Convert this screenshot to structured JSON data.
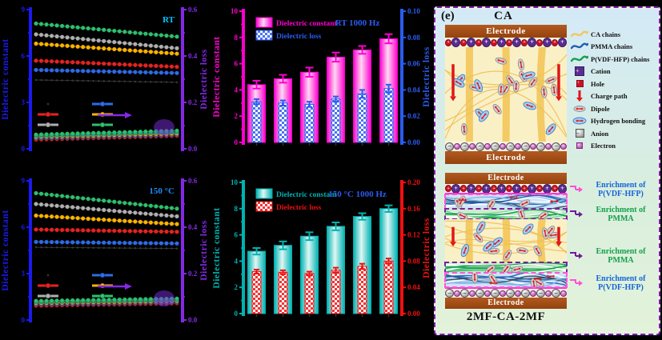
{
  "chart_data": [
    {
      "id": "line-rt",
      "type": "line",
      "title": "RT",
      "title_color": "#00c3ff",
      "left_axis": {
        "label": "Dielectric constant",
        "color": "#1a1af0",
        "range": [
          0,
          9
        ],
        "ticks": [
          0,
          3,
          6,
          9
        ]
      },
      "right_axis": {
        "label": "Dielectric loss",
        "color": "#8428e8",
        "range": [
          0,
          0.6
        ],
        "ticks": [
          "0.0",
          "0.2",
          "0.4",
          "0.6"
        ]
      },
      "x_axis": {
        "tick_labels_visible": false
      },
      "series": [
        {
          "name": "constant-black",
          "color": "#3c3c3c",
          "axis": "left",
          "small": true,
          "start": 4.45,
          "end": 4.3
        },
        {
          "name": "constant-red",
          "color": "#e82222",
          "axis": "left",
          "start": 5.7,
          "end": 5.3
        },
        {
          "name": "constant-gray",
          "color": "#b0b0b0",
          "axis": "left",
          "start": 7.4,
          "end": 6.5
        },
        {
          "name": "constant-blue",
          "color": "#2e6be8",
          "axis": "left",
          "start": 5.1,
          "end": 4.9
        },
        {
          "name": "constant-yellow",
          "color": "#ffb400",
          "axis": "left",
          "start": 6.8,
          "end": 6.15
        },
        {
          "name": "constant-green",
          "color": "#2ec06e",
          "axis": "left",
          "start": 8.1,
          "end": 7.25
        },
        {
          "name": "loss-red",
          "color": "#e82222",
          "axis": "right",
          "start": 0.04,
          "end": 0.056
        },
        {
          "name": "loss-blue",
          "color": "#2e6be8",
          "axis": "right",
          "start": 0.046,
          "end": 0.061
        },
        {
          "name": "loss-yellow",
          "color": "#ffb400",
          "axis": "right",
          "start": 0.051,
          "end": 0.066
        },
        {
          "name": "loss-cyan",
          "color": "#19c2c2",
          "axis": "right",
          "start": 0.056,
          "end": 0.072
        },
        {
          "name": "loss-green",
          "color": "#2ec06e",
          "axis": "right",
          "start": 0.061,
          "end": 0.078
        }
      ],
      "annotation": {
        "ellipse_color": "#7a2ee0",
        "arrow_color": "#8428e8"
      }
    },
    {
      "id": "line-150",
      "type": "line",
      "title": "150 °C",
      "title_color": "#1e90ff",
      "left_axis": {
        "label": "Dielectric constant",
        "color": "#1a1af0",
        "range": [
          0,
          9
        ],
        "ticks": [
          0,
          3,
          6,
          9
        ]
      },
      "right_axis": {
        "label": "Dielectric loss",
        "color": "#8428e8",
        "range": [
          0,
          0.6
        ],
        "ticks": [
          "0.0",
          "0.2",
          "0.4",
          "0.6"
        ]
      },
      "x_axis": {
        "tick_labels_visible": false
      },
      "series": [
        {
          "name": "constant-black",
          "color": "#3c3c3c",
          "axis": "left",
          "small": true,
          "start": 4.7,
          "end": 4.62
        },
        {
          "name": "constant-red",
          "color": "#e82222",
          "axis": "left",
          "start": 5.85,
          "end": 5.7
        },
        {
          "name": "constant-gray",
          "color": "#b0b0b0",
          "axis": "left",
          "start": 7.5,
          "end": 6.7
        },
        {
          "name": "constant-blue",
          "color": "#2e6be8",
          "axis": "left",
          "start": 5.05,
          "end": 4.95
        },
        {
          "name": "constant-yellow",
          "color": "#ffb400",
          "axis": "left",
          "start": 6.75,
          "end": 6.2
        },
        {
          "name": "constant-green",
          "color": "#2ec06e",
          "axis": "left",
          "start": 8.2,
          "end": 7.2
        },
        {
          "name": "loss-red",
          "color": "#e82222",
          "axis": "right",
          "start": 0.062,
          "end": 0.072
        },
        {
          "name": "loss-blue",
          "color": "#2e6be8",
          "axis": "right",
          "start": 0.068,
          "end": 0.077
        },
        {
          "name": "loss-yellow",
          "color": "#ffb400",
          "axis": "right",
          "start": 0.073,
          "end": 0.082
        },
        {
          "name": "loss-cyan",
          "color": "#19c2c2",
          "axis": "right",
          "start": 0.078,
          "end": 0.087
        },
        {
          "name": "loss-green",
          "color": "#2ec06e",
          "axis": "right",
          "start": 0.082,
          "end": 0.092
        }
      ],
      "annotation": {
        "ellipse_color": "#7a2ee0",
        "arrow_color": "#8428e8"
      }
    },
    {
      "id": "bar-rt",
      "type": "bar",
      "title": "RT 1000 Hz",
      "title_color": "#2b5bf0",
      "left_axis": {
        "label": "Dielectric constant",
        "color": "#ff00d0",
        "range": [
          0,
          10
        ],
        "ticks": [
          0,
          2,
          4,
          6,
          8,
          10
        ]
      },
      "right_axis": {
        "label": "Dielectric loss",
        "color": "#2b5bf0",
        "range": [
          0,
          0.1
        ],
        "ticks": [
          "0.00",
          "0.02",
          "0.04",
          "0.06",
          "0.08",
          "0.10"
        ]
      },
      "x_axis": {
        "tick_labels_visible": false,
        "groups": 6
      },
      "legend": [
        {
          "label": "Dielectric constant"
        },
        {
          "label": "Dielectric loss"
        }
      ],
      "constant": {
        "color": "#ff00d0",
        "light": "#ffd9f2",
        "values": [
          4.4,
          4.85,
          5.35,
          6.5,
          7.05,
          7.9
        ],
        "errors": [
          0.3,
          0.3,
          0.35,
          0.35,
          0.3,
          0.35
        ]
      },
      "loss": {
        "color": "#2b5bf0",
        "light": "#ffffff",
        "values": [
          0.031,
          0.03,
          0.029,
          0.033,
          0.037,
          0.041
        ],
        "errors": [
          0.002,
          0.002,
          0.002,
          0.002,
          0.003,
          0.003
        ]
      }
    },
    {
      "id": "bar-150",
      "type": "bar",
      "title": "150 °C 1000 Hz",
      "title_color": "#2b5bf0",
      "left_axis": {
        "label": "Dielectric constant",
        "color": "#00b2b2",
        "range": [
          0,
          10
        ],
        "ticks": [
          0,
          2,
          4,
          6,
          8,
          10
        ]
      },
      "right_axis": {
        "label": "Dielectric loss",
        "color": "#ee1111",
        "range": [
          0,
          0.2
        ],
        "ticks": [
          "0.00",
          "0.04",
          "0.08",
          "0.12",
          "0.16",
          "0.20"
        ]
      },
      "x_axis": {
        "tick_labels_visible": false,
        "groups": 6
      },
      "legend": [
        {
          "label": "Dielectric constant"
        },
        {
          "label": "Dielectric loss"
        }
      ],
      "constant": {
        "color": "#00b2b2",
        "light": "#dff7f4",
        "values": [
          4.75,
          5.2,
          5.9,
          6.65,
          7.4,
          8.0
        ],
        "errors": [
          0.25,
          0.3,
          0.3,
          0.3,
          0.25,
          0.25
        ]
      },
      "loss": {
        "color": "#ee1111",
        "light": "#ffffff",
        "values": [
          0.064,
          0.063,
          0.061,
          0.066,
          0.072,
          0.08
        ],
        "errors": [
          0.003,
          0.003,
          0.003,
          0.004,
          0.004,
          0.004
        ]
      }
    }
  ],
  "panel_e": {
    "label": "(e)",
    "top_title": "CA",
    "bottom_title": "2MF-CA-2MF",
    "electrode_label": "Electrode",
    "legend_items": [
      {
        "icon": "ca-chain-icon",
        "label": "CA chains",
        "color": "#f2c75e"
      },
      {
        "icon": "pmma-chain-icon",
        "label": "PMMA chains",
        "color": "#1f5fae"
      },
      {
        "icon": "pvdf-hfp-chain-icon",
        "label": "P(VDF-HFP) chains",
        "color": "#12a04b"
      },
      {
        "icon": "cation-icon",
        "label": "Cation",
        "color": "#5b2d91"
      },
      {
        "icon": "hole-icon",
        "label": "Hole",
        "color": "#cf1025"
      },
      {
        "icon": "charge-path-icon",
        "label": "Charge path",
        "color": "#e01616"
      },
      {
        "icon": "dipole-icon",
        "label": "Dipole",
        "color": "#cdcdcd"
      },
      {
        "icon": "hydrogen-bonding-icon",
        "label": "Hydrogen bonding",
        "color": "#a6cdf0"
      },
      {
        "icon": "anion-icon",
        "label": "Anion",
        "color": "#858585"
      },
      {
        "icon": "electron-icon",
        "label": "Electron",
        "color": "#9c38a0"
      }
    ],
    "enrichment_labels": [
      {
        "line1": "Enrichment of",
        "line2": "P(VDF-HFP)",
        "text_color": "#1565d8",
        "arrow_color": "#ff4fd8"
      },
      {
        "line1": "Enrichment of",
        "line2": "PMMA",
        "text_color": "#12a04b",
        "arrow_color": "#6a1b9a"
      },
      {
        "line1": "Enrichment of",
        "line2": "PMMA",
        "text_color": "#12a04b",
        "arrow_color": "#6a1b9a"
      },
      {
        "line1": "Enrichment of",
        "line2": "P(VDF-HFP)",
        "text_color": "#1565d8",
        "arrow_color": "#ff4fd8"
      }
    ],
    "colors": {
      "electrode": "#a8521d",
      "ca_bg": "#faf0c6",
      "ca_chain": "#f2c75e",
      "pmma": "#1f5fae",
      "pvdf_hfp": "#12a04b",
      "cation": "#5b2d91",
      "hole": "#cf1025",
      "dipole_fill": "#d3d3d3",
      "hbond_fill": "#a6cdf0",
      "charge_arrow": "#e01616",
      "panel_border": "#7b1fa2"
    }
  }
}
